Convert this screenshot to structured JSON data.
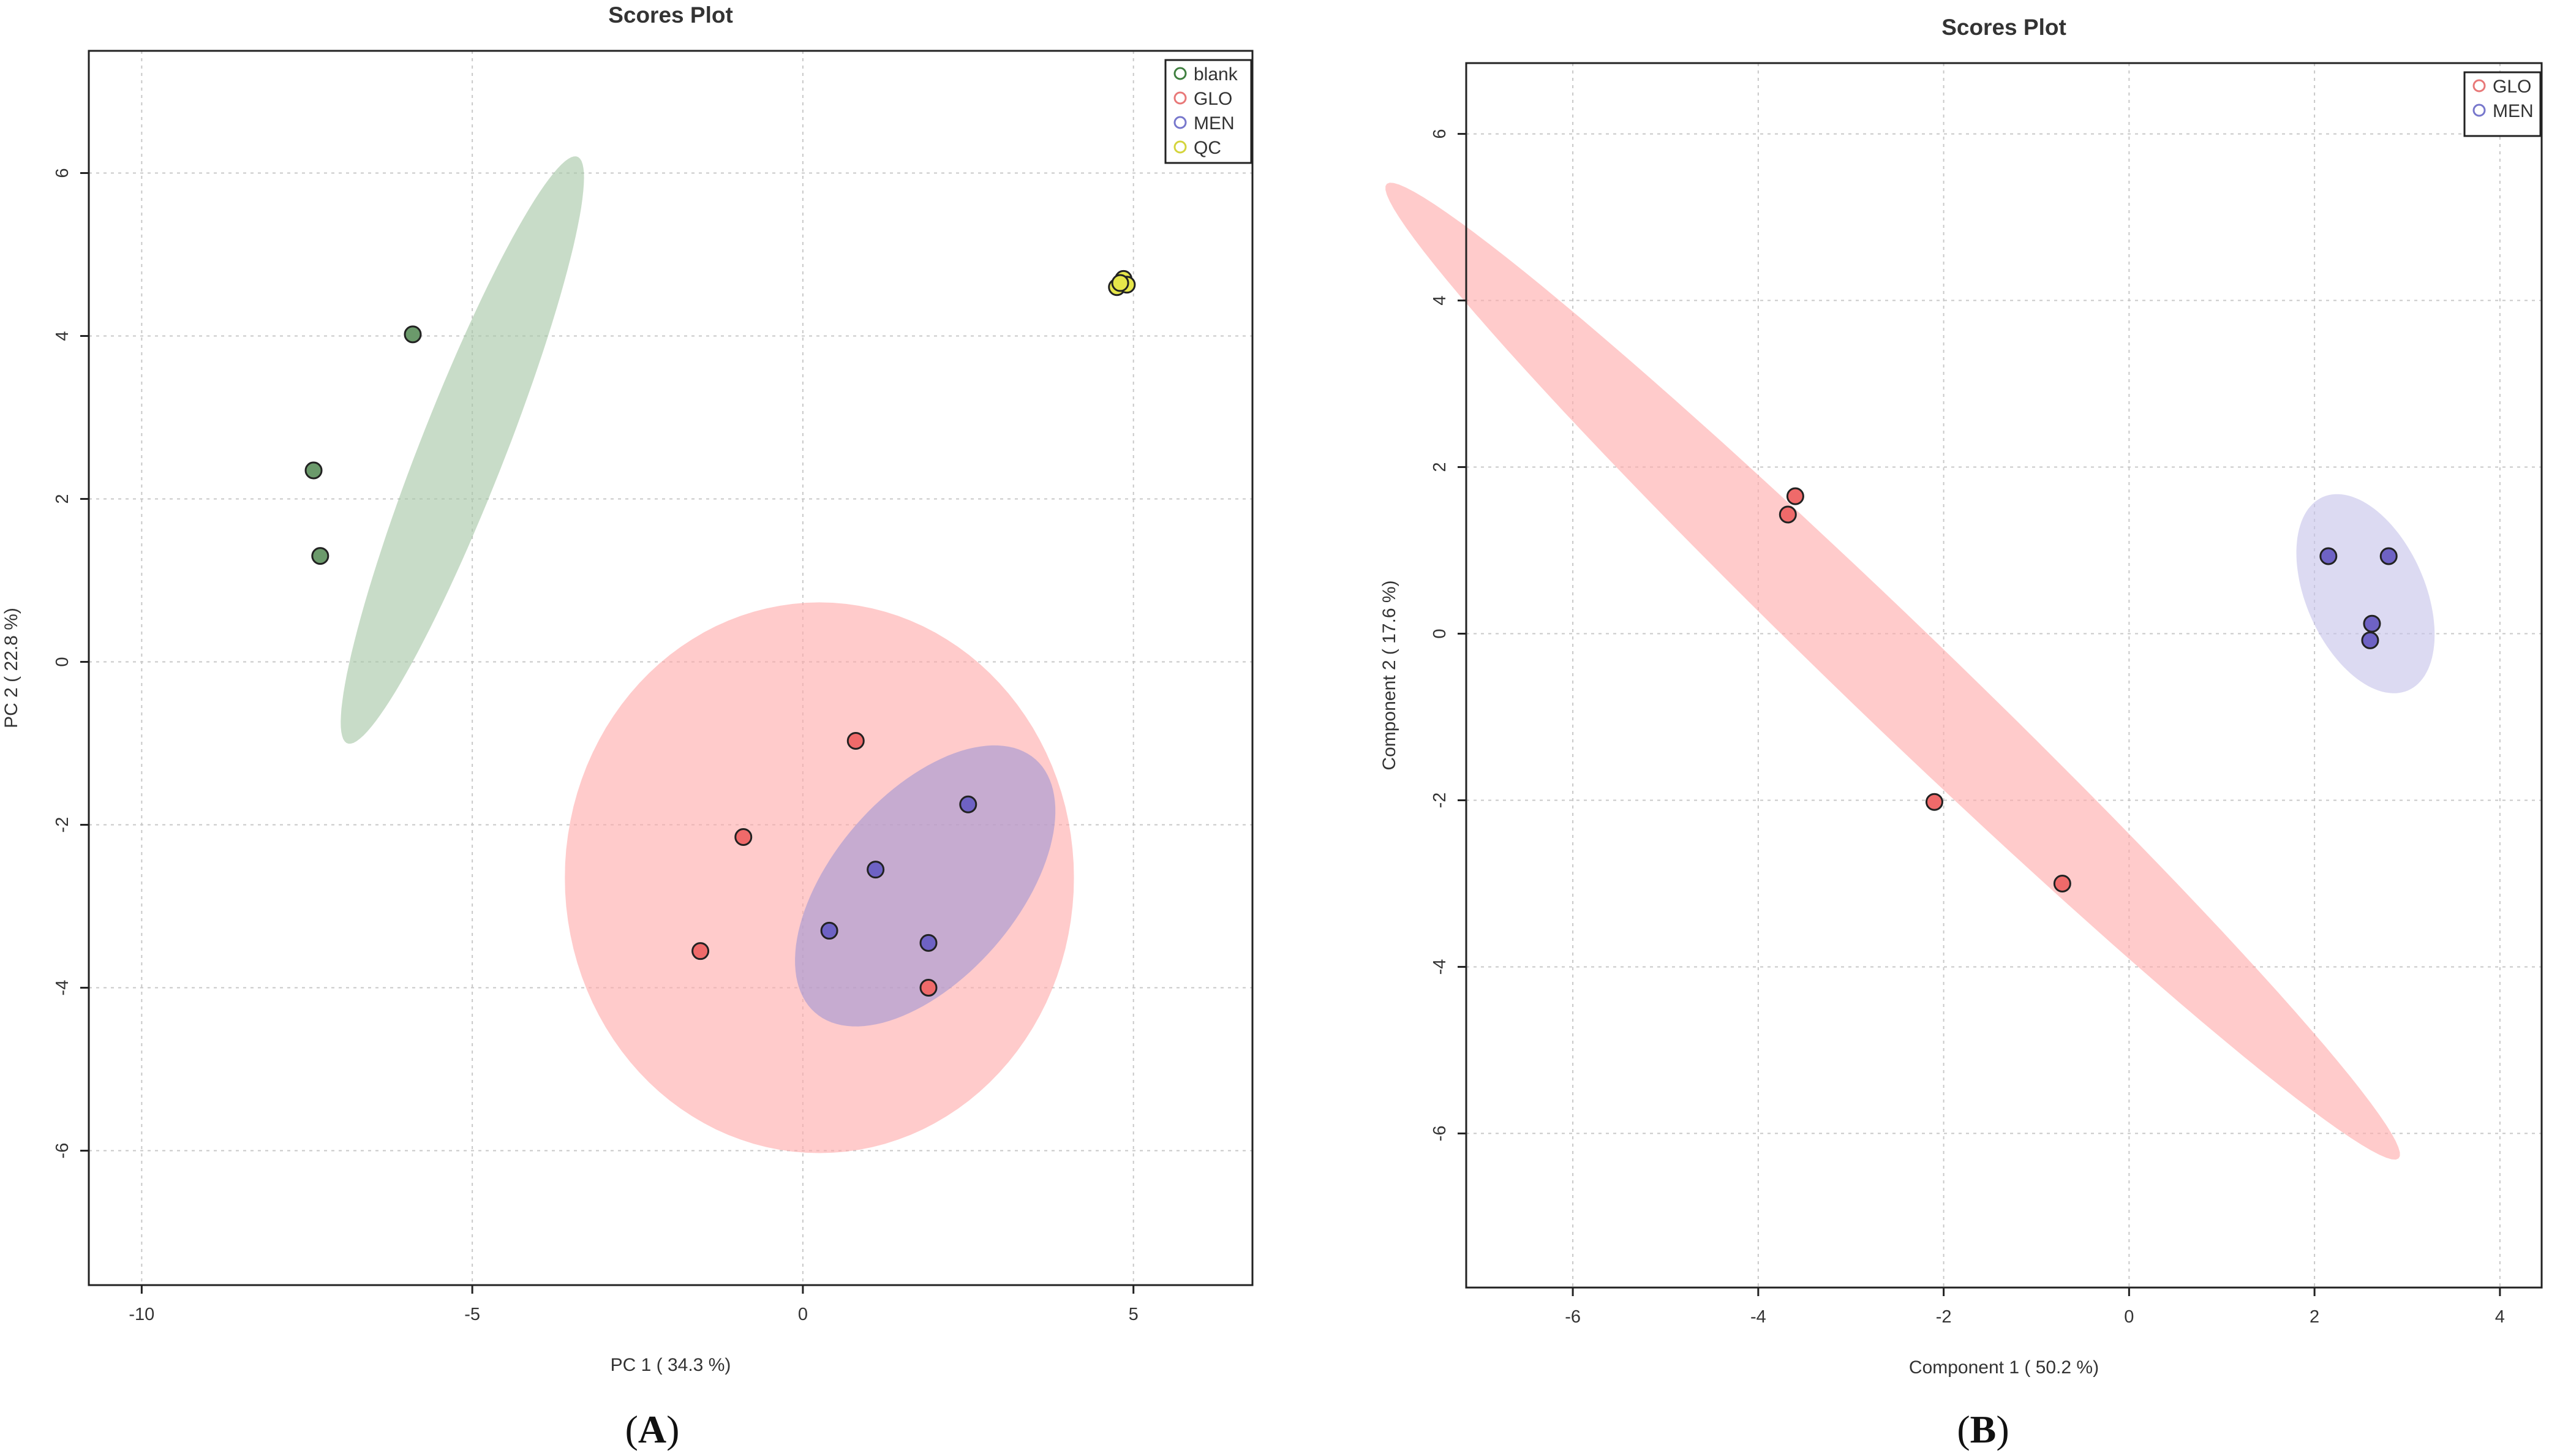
{
  "chart_data": [
    {
      "type": "scatter",
      "panel_label": "A",
      "title": "Scores Plot",
      "xlabel": "PC 1 ( 34.3 %)",
      "ylabel": "PC 2 ( 22.8 %)",
      "xlim": [
        -10.8,
        6.8
      ],
      "ylim": [
        -7.65,
        7.5
      ],
      "xticks": [
        -10,
        -5,
        0,
        5
      ],
      "yticks": [
        -6,
        -4,
        -2,
        0,
        2,
        4,
        6
      ],
      "grid": true,
      "legend_position": "top-right",
      "series": [
        {
          "name": "blank",
          "color": "#3f7f3f",
          "fill": "#6b9a6b",
          "points": [
            {
              "x": -7.4,
              "y": 2.35
            },
            {
              "x": -7.3,
              "y": 1.3
            },
            {
              "x": -5.9,
              "y": 4.02
            }
          ],
          "ellipse": {
            "cx": -5.15,
            "cy": 2.6,
            "rx": 4.0,
            "ry": 0.62,
            "angle_deg": 64,
            "color": "#a6c7a6"
          }
        },
        {
          "name": "GLO",
          "color": "#e87878",
          "fill": "#ef6a6a",
          "points": [
            {
              "x": 0.8,
              "y": -0.97
            },
            {
              "x": -0.9,
              "y": -2.15
            },
            {
              "x": -1.55,
              "y": -3.55
            },
            {
              "x": 1.9,
              "y": -4.0
            }
          ],
          "ellipse": {
            "cx": 0.25,
            "cy": -2.65,
            "rx": 3.85,
            "ry": 3.38,
            "angle_deg": 0,
            "color": "#ffabab"
          }
        },
        {
          "name": "MEN",
          "color": "#7777cc",
          "fill": "#6e62c4",
          "points": [
            {
              "x": 2.5,
              "y": -1.75
            },
            {
              "x": 1.1,
              "y": -2.55
            },
            {
              "x": 0.4,
              "y": -3.3
            },
            {
              "x": 1.9,
              "y": -3.45
            }
          ],
          "ellipse": {
            "cx": 1.85,
            "cy": -2.75,
            "rx": 2.3,
            "ry": 1.25,
            "angle_deg": 38,
            "color": "#a398d4"
          }
        },
        {
          "name": "QC",
          "color": "#d4d43c",
          "fill": "#e6e64a",
          "points": [
            {
              "x": 4.75,
              "y": 4.6
            },
            {
              "x": 4.85,
              "y": 4.7
            },
            {
              "x": 4.9,
              "y": 4.63
            },
            {
              "x": 4.8,
              "y": 4.65
            }
          ],
          "ellipse": null
        }
      ]
    },
    {
      "type": "scatter",
      "panel_label": "B",
      "title": "Scores Plot",
      "xlabel": "Component 1 ( 50.2 %)",
      "ylabel": "Component 2 ( 17.6 %)",
      "xlim": [
        -7.15,
        4.45
      ],
      "ylim": [
        -7.85,
        6.85
      ],
      "xticks": [
        -6,
        -4,
        -2,
        0,
        2,
        4
      ],
      "yticks": [
        -6,
        -4,
        -2,
        0,
        2,
        4,
        6
      ],
      "grid": true,
      "legend_position": "top-right",
      "series": [
        {
          "name": "GLO",
          "color": "#e87878",
          "fill": "#ef6a6a",
          "points": [
            {
              "x": -3.6,
              "y": 1.65
            },
            {
              "x": -3.68,
              "y": 1.43
            },
            {
              "x": -2.1,
              "y": -2.02
            },
            {
              "x": -0.72,
              "y": -3.0
            }
          ],
          "ellipse": {
            "cx": -2.55,
            "cy": -0.45,
            "rx": 8.0,
            "ry": 0.58,
            "angle_deg": -47,
            "color": "#ffabab"
          }
        },
        {
          "name": "MEN",
          "color": "#7777cc",
          "fill": "#6e62c4",
          "points": [
            {
              "x": 2.15,
              "y": 0.93
            },
            {
              "x": 2.8,
              "y": 0.93
            },
            {
              "x": 2.62,
              "y": 0.12
            },
            {
              "x": 2.6,
              "y": -0.08
            }
          ],
          "ellipse": {
            "cx": 2.55,
            "cy": 0.48,
            "rx": 1.25,
            "ry": 0.65,
            "angle_deg": -70,
            "color": "#c6c3ea"
          }
        }
      ]
    }
  ]
}
